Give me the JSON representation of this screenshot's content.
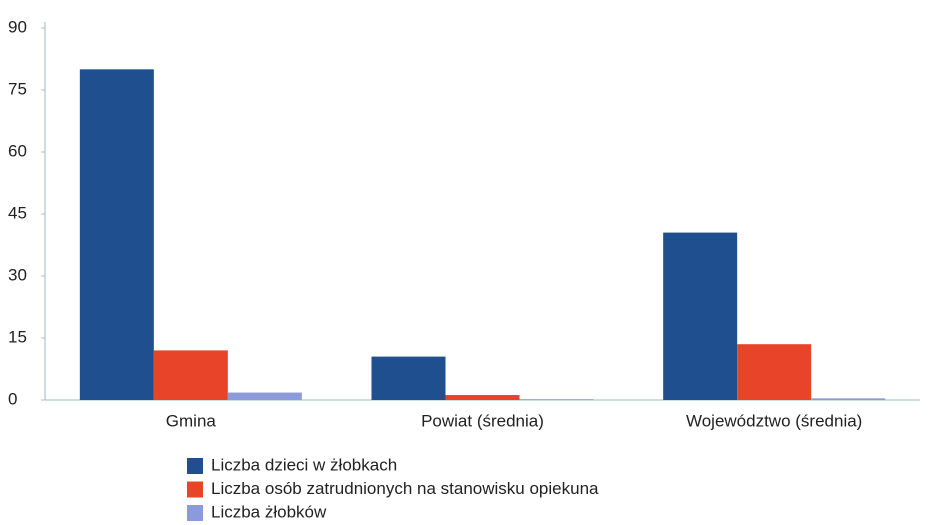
{
  "chart_data": {
    "type": "bar",
    "categories": [
      "Gmina",
      "Powiat (średnia)",
      "Województwo (średnia)"
    ],
    "series": [
      {
        "name": "Liczba dzieci w żłobkach",
        "color": "#1f4f8f",
        "values": [
          80,
          10.5,
          40.5
        ]
      },
      {
        "name": "Liczba osób zatrudnionych na stanowisku opiekuna",
        "color": "#e8442a",
        "values": [
          12,
          1.2,
          13.5
        ]
      },
      {
        "name": "Liczba żłobków",
        "color": "#8b9ad8",
        "values": [
          1.8,
          0.2,
          0.4
        ]
      }
    ],
    "ylim": [
      0,
      90
    ],
    "yticks": [
      0,
      15,
      30,
      45,
      60,
      75,
      90
    ],
    "grid": false
  }
}
